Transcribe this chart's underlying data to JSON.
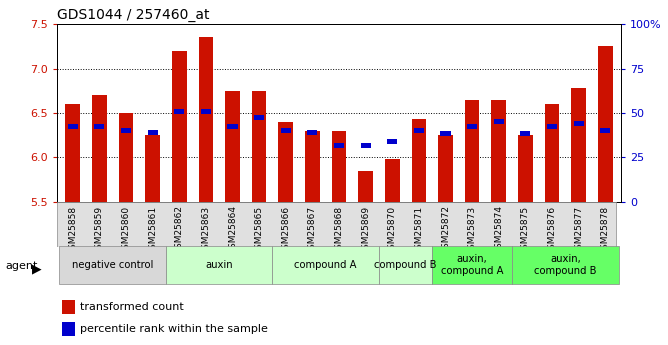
{
  "title": "GDS1044 / 257460_at",
  "samples": [
    "GSM25858",
    "GSM25859",
    "GSM25860",
    "GSM25861",
    "GSM25862",
    "GSM25863",
    "GSM25864",
    "GSM25865",
    "GSM25866",
    "GSM25867",
    "GSM25868",
    "GSM25869",
    "GSM25870",
    "GSM25871",
    "GSM25872",
    "GSM25873",
    "GSM25874",
    "GSM25875",
    "GSM25876",
    "GSM25877",
    "GSM25878"
  ],
  "bar_values": [
    6.6,
    6.7,
    6.5,
    6.25,
    7.2,
    7.35,
    6.75,
    6.75,
    6.4,
    6.3,
    6.3,
    5.85,
    5.98,
    6.43,
    6.25,
    6.65,
    6.65,
    6.25,
    6.6,
    6.78,
    7.25
  ],
  "percentile_values": [
    6.35,
    6.35,
    6.3,
    6.28,
    6.52,
    6.52,
    6.35,
    6.45,
    6.3,
    6.28,
    6.13,
    6.13,
    6.18,
    6.3,
    6.27,
    6.35,
    6.4,
    6.27,
    6.35,
    6.38,
    6.3
  ],
  "groups": [
    {
      "label": "negative control",
      "start": 0,
      "end": 4,
      "color": "#d8d8d8"
    },
    {
      "label": "auxin",
      "start": 4,
      "end": 8,
      "color": "#ccffcc"
    },
    {
      "label": "compound A",
      "start": 8,
      "end": 12,
      "color": "#ccffcc"
    },
    {
      "label": "compound B",
      "start": 12,
      "end": 14,
      "color": "#ccffcc"
    },
    {
      "label": "auxin,\ncompound A",
      "start": 14,
      "end": 17,
      "color": "#66ff66"
    },
    {
      "label": "auxin,\ncompound B",
      "start": 17,
      "end": 21,
      "color": "#66ff66"
    }
  ],
  "ylim_left": [
    5.5,
    7.5
  ],
  "yticks_left": [
    5.5,
    6.0,
    6.5,
    7.0,
    7.5
  ],
  "yticks_right": [
    0,
    25,
    50,
    75,
    100
  ],
  "bar_color": "#cc1100",
  "percentile_color": "#0000cc",
  "base": 5.5,
  "bar_width": 0.55,
  "background_color": "#ffffff"
}
